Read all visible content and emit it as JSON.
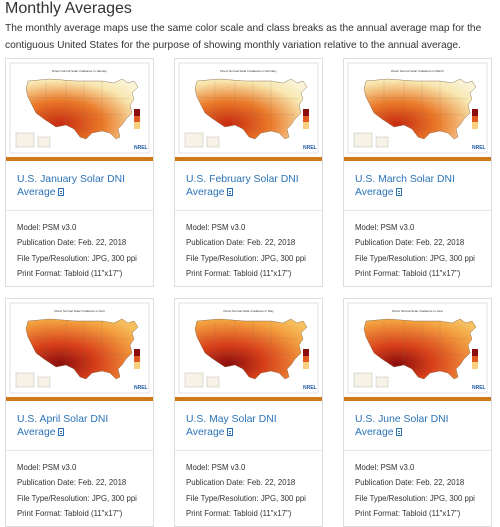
{
  "section": {
    "title": "Monthly Averages",
    "description": "The monthly average maps use the same color scale and class breaks as the annual average map for the contiguous United States for the purpose of showing monthly variation relative to the annual average."
  },
  "colors": {
    "accent_bar": "#d07a1b",
    "link": "#2a73b8"
  },
  "cards": [
    {
      "title": "U.S. January Solar DNI Average",
      "map_title": "Direct Normal Solar Irradiance in January",
      "brand": "NREL",
      "icon": "document-icon",
      "model_label": "Model:",
      "model": "PSM v3.0",
      "pub_label": "Publication Date:",
      "pub_date": "Feb. 22, 2018",
      "filetype_label": "File Type/Resolution:",
      "filetype": "JPG, 300 ppi",
      "print_label": "Print Format:",
      "print_format": "Tabloid (11\"x17\")"
    },
    {
      "title": "U.S. February Solar DNI Average",
      "map_title": "Direct Normal Solar Irradiance in February",
      "brand": "NREL",
      "icon": "document-icon",
      "model_label": "Model:",
      "model": "PSM v3.0",
      "pub_label": "Publication Date:",
      "pub_date": "Feb. 22, 2018",
      "filetype_label": "File Type/Resolution:",
      "filetype": "JPG, 300 ppi",
      "print_label": "Print Format:",
      "print_format": "Tabloid (11\"x17\")"
    },
    {
      "title": "U.S. March Solar DNI Average",
      "map_title": "Direct Normal Solar Irradiance in March",
      "brand": "NREL",
      "icon": "document-icon",
      "model_label": "Model:",
      "model": "PSM v3.0",
      "pub_label": "Publication Date:",
      "pub_date": "Feb. 22, 2018",
      "filetype_label": "File Type/Resolution:",
      "filetype": "JPG, 300 ppi",
      "print_label": "Print Format:",
      "print_format": "Tabloid (11\"x17\")"
    },
    {
      "title": "U.S. April Solar DNI Average",
      "map_title": "Direct Normal Solar Irradiance in April",
      "brand": "NREL",
      "icon": "document-icon",
      "model_label": "Model:",
      "model": "PSM v3.0",
      "pub_label": "Publication Date:",
      "pub_date": "Feb. 22, 2018",
      "filetype_label": "File Type/Resolution:",
      "filetype": "JPG, 300 ppi",
      "print_label": "Print Format:",
      "print_format": "Tabloid (11\"x17\")"
    },
    {
      "title": "U.S. May Solar DNI Average",
      "map_title": "Direct Normal Solar Irradiance in May",
      "brand": "NREL",
      "icon": "document-icon",
      "model_label": "Model:",
      "model": "PSM v3.0",
      "pub_label": "Publication Date:",
      "pub_date": "Feb. 22, 2018",
      "filetype_label": "File Type/Resolution:",
      "filetype": "JPG, 300 ppi",
      "print_label": "Print Format:",
      "print_format": "Tabloid (11\"x17\")"
    },
    {
      "title": "U.S. June Solar DNI Average",
      "map_title": "Direct Normal Solar Irradiance in June",
      "brand": "NREL",
      "icon": "document-icon",
      "model_label": "Model:",
      "model": "PSM v3.0",
      "pub_label": "Publication Date:",
      "pub_date": "Feb. 22, 2018",
      "filetype_label": "File Type/Resolution:",
      "filetype": "JPG, 300 ppi",
      "print_label": "Print Format:",
      "print_format": "Tabloid (11\"x17\")"
    }
  ]
}
